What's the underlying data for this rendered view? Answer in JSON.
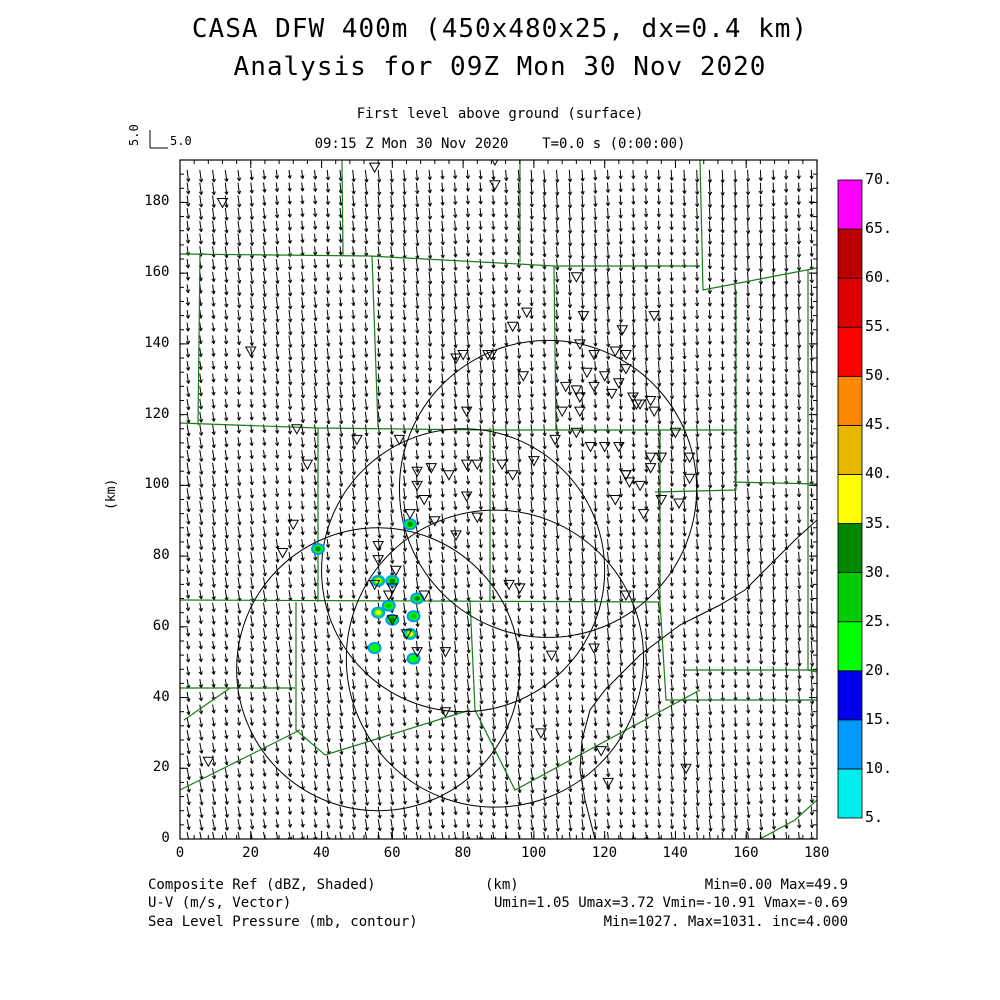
{
  "title_line1": "CASA DFW 400m (450x480x25, dx=0.4 km)",
  "title_line2": "Analysis for 09Z Mon 30 Nov 2020",
  "level_label": "First level above ground (surface)",
  "time_label": "09:15 Z Mon 30 Nov 2020    T=0.0 s (0:00:00)",
  "ref_vector": {
    "vertical_label": "5.0",
    "horizontal_label": "5.0"
  },
  "axes": {
    "xlabel": "(km)",
    "ylabel": "(km)",
    "xticks": [
      "0",
      "20",
      "40",
      "60",
      "80",
      "100",
      "120",
      "140",
      "160",
      "180"
    ],
    "yticks": [
      "0",
      "20",
      "40",
      "60",
      "80",
      "100",
      "120",
      "140",
      "160",
      "180"
    ],
    "xlim": [
      0,
      180
    ],
    "ylim": [
      0,
      192
    ]
  },
  "colorbar": {
    "labels": [
      "5.",
      "10.",
      "15.",
      "20.",
      "25.",
      "30.",
      "35.",
      "40.",
      "45.",
      "50.",
      "55.",
      "60.",
      "65.",
      "70."
    ],
    "colors": [
      "#00eeee",
      "#0099ff",
      "#0000ee",
      "#00ff00",
      "#00cc00",
      "#008800",
      "#ffff00",
      "#e8b800",
      "#ff8800",
      "#ff0000",
      "#dd0000",
      "#bb0000",
      "#ff00ff"
    ]
  },
  "footer": {
    "field1": "Composite Ref (dBZ, Shaded)",
    "field1_stats": "Min=0.00 Max=49.9",
    "xunit": "(km)",
    "field2": "U-V (m/s, Vector)",
    "field2_stats": "Umin=1.05 Umax=3.72 Vmin=-10.91 Vmax=-0.69",
    "field3": "Sea Level Pressure (mb, contour)",
    "field3_stats": "Min=1027. Max=1031. inc=4.000"
  },
  "radar_rings_km": [
    {
      "cx": 56,
      "cy": 48,
      "r": 40
    },
    {
      "cx": 80,
      "cy": 76,
      "r": 40
    },
    {
      "cx": 104,
      "cy": 99,
      "r": 42
    },
    {
      "cx": 89,
      "cy": 51,
      "r": 42
    }
  ],
  "echoes_km": [
    {
      "x": 39,
      "y": 82,
      "dbz": 30
    },
    {
      "x": 65,
      "y": 89,
      "dbz": 32
    },
    {
      "x": 56,
      "y": 73,
      "dbz": 35
    },
    {
      "x": 60,
      "y": 73,
      "dbz": 33
    },
    {
      "x": 59,
      "y": 66,
      "dbz": 28
    },
    {
      "x": 56,
      "y": 64,
      "dbz": 36
    },
    {
      "x": 60,
      "y": 62,
      "dbz": 30
    },
    {
      "x": 66,
      "y": 63,
      "dbz": 26
    },
    {
      "x": 67,
      "y": 68,
      "dbz": 30
    },
    {
      "x": 65,
      "y": 58,
      "dbz": 38
    },
    {
      "x": 55,
      "y": 54,
      "dbz": 24
    },
    {
      "x": 66,
      "y": 51,
      "dbz": 22
    }
  ],
  "stations_km": [
    [
      12,
      180
    ],
    [
      55,
      190
    ],
    [
      89,
      192
    ],
    [
      89,
      185
    ],
    [
      33,
      116
    ],
    [
      36,
      106
    ],
    [
      50,
      113
    ],
    [
      62,
      113
    ],
    [
      67,
      104
    ],
    [
      71,
      105
    ],
    [
      76,
      103
    ],
    [
      81,
      106
    ],
    [
      81,
      97
    ],
    [
      84,
      106
    ],
    [
      67,
      100
    ],
    [
      69,
      96
    ],
    [
      94,
      103
    ],
    [
      91,
      106
    ],
    [
      32,
      89
    ],
    [
      29,
      81
    ],
    [
      56,
      79
    ],
    [
      56,
      83
    ],
    [
      65,
      92
    ],
    [
      72,
      90
    ],
    [
      78,
      86
    ],
    [
      84,
      91
    ],
    [
      55,
      72
    ],
    [
      61,
      76
    ],
    [
      60,
      71
    ],
    [
      59,
      69
    ],
    [
      60,
      62
    ],
    [
      69,
      69
    ],
    [
      64,
      58
    ],
    [
      67,
      53
    ],
    [
      75,
      53
    ],
    [
      93,
      72
    ],
    [
      96,
      71
    ],
    [
      105,
      52
    ],
    [
      117,
      54
    ],
    [
      126,
      69
    ],
    [
      126,
      103
    ],
    [
      123,
      96
    ],
    [
      126,
      103
    ],
    [
      130,
      100
    ],
    [
      133,
      108
    ],
    [
      136,
      108
    ],
    [
      127,
      101
    ],
    [
      133,
      105
    ],
    [
      136,
      96
    ],
    [
      141,
      95
    ],
    [
      144,
      102
    ],
    [
      144,
      108
    ],
    [
      131,
      92
    ],
    [
      120,
      111
    ],
    [
      116,
      111
    ],
    [
      124,
      111
    ],
    [
      108,
      121
    ],
    [
      112,
      115
    ],
    [
      113,
      121
    ],
    [
      112,
      127
    ],
    [
      113,
      125
    ],
    [
      117,
      128
    ],
    [
      122,
      126
    ],
    [
      115,
      132
    ],
    [
      120,
      131
    ],
    [
      124,
      129
    ],
    [
      126,
      133
    ],
    [
      130,
      123
    ],
    [
      128,
      125
    ],
    [
      134,
      121
    ],
    [
      129,
      123
    ],
    [
      133,
      124
    ],
    [
      126,
      137
    ],
    [
      123,
      138
    ],
    [
      113,
      140
    ],
    [
      114,
      148
    ],
    [
      125,
      144
    ],
    [
      134,
      148
    ],
    [
      112,
      159
    ],
    [
      88,
      137
    ],
    [
      80,
      137
    ],
    [
      78,
      136
    ],
    [
      81,
      121
    ],
    [
      97,
      131
    ],
    [
      98,
      149
    ],
    [
      94,
      145
    ],
    [
      100,
      107
    ],
    [
      117,
      137
    ],
    [
      109,
      128
    ],
    [
      140,
      115
    ],
    [
      106,
      113
    ],
    [
      87,
      137
    ],
    [
      75,
      36
    ],
    [
      102,
      30
    ],
    [
      119,
      25
    ],
    [
      143,
      20
    ],
    [
      121,
      16
    ],
    [
      8,
      22
    ],
    [
      20,
      138
    ]
  ]
}
